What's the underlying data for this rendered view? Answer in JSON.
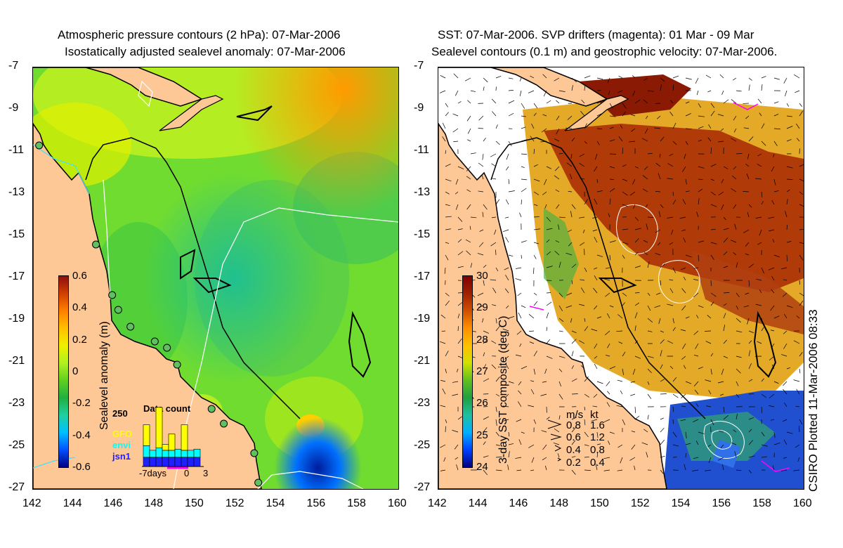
{
  "left_panel": {
    "title_line1": "Atmospheric pressure contours (2 hPa): 07-Mar-2006",
    "title_line2": "Isostatically adjusted sealevel anomaly: 07-Mar-2006",
    "colorbar": {
      "label": "Sealevel anomaly (m)",
      "ticks": [
        "0.6",
        "0.4",
        "0.2",
        "0",
        "-0.2",
        "-0.4",
        "-0.6"
      ],
      "range": [
        -0.6,
        0.6
      ],
      "colors": [
        "#00007f",
        "#0050ff",
        "#00c0ff",
        "#20d0a0",
        "#20b040",
        "#60d020",
        "#b0f020",
        "#f0f000",
        "#ffc000",
        "#ff8000",
        "#d04000",
        "#8b1010"
      ]
    },
    "histogram": {
      "title": "Data count",
      "ymax_label": "250",
      "series": [
        {
          "name": "GFO",
          "color": "#ffff00"
        },
        {
          "name": "envi",
          "color": "#00ffff"
        },
        {
          "name": "jsn1",
          "color": "#2020ff"
        }
      ],
      "x_labels": [
        "-7days",
        "0",
        "3"
      ],
      "bars": [
        {
          "jsn1": 40,
          "envi": 50,
          "gfo": 90
        },
        {
          "jsn1": 40,
          "envi": 30,
          "gfo": 0
        },
        {
          "jsn1": 40,
          "envi": 40,
          "gfo": 175
        },
        {
          "jsn1": 40,
          "envi": 30,
          "gfo": 25
        },
        {
          "jsn1": 40,
          "envi": 30,
          "gfo": 70
        },
        {
          "jsn1": 40,
          "envi": 35,
          "gfo": 0
        },
        {
          "jsn1": 40,
          "envi": 30,
          "gfo": 110
        },
        {
          "jsn1": 40,
          "envi": 30,
          "gfo": 0
        },
        {
          "jsn1": 40,
          "envi": 35,
          "gfo": 0
        }
      ]
    }
  },
  "right_panel": {
    "title_line1": "SST: 07-Mar-2006. SVP drifters (magenta): 01 Mar - 09 Mar",
    "title_line2": "Sealevel contours (0.1 m) and geostrophic velocity: 07-Mar-2006.",
    "colorbar": {
      "label": "3-day SST composite (deg C)",
      "ticks": [
        "30",
        "29",
        "28",
        "27",
        "26",
        "25",
        "24"
      ],
      "range": [
        24,
        30
      ],
      "colors": [
        "#00007f",
        "#0040ff",
        "#00b0ff",
        "#20c0a0",
        "#20a040",
        "#60c020",
        "#d0e000",
        "#ffc000",
        "#ff9000",
        "#d05000",
        "#a02000",
        "#7f0000"
      ]
    },
    "velocity_legend": {
      "header_ms": "m/s",
      "header_kt": "kt",
      "rows": [
        {
          "ms": "0.8",
          "kt": "1.6"
        },
        {
          "ms": "0.6",
          "kt": "1.2"
        },
        {
          "ms": "0.4",
          "kt": "0.8"
        },
        {
          "ms": "0.2",
          "kt": "0.4"
        }
      ]
    }
  },
  "axes": {
    "lon_ticks": [
      "142",
      "144",
      "146",
      "148",
      "150",
      "152",
      "154",
      "156",
      "158",
      "160"
    ],
    "lat_ticks": [
      "-7",
      "-9",
      "-11",
      "-13",
      "-15",
      "-17",
      "-19",
      "-21",
      "-23",
      "-25",
      "-27"
    ],
    "lon_range": [
      142,
      160
    ],
    "lat_range": [
      -27,
      -7
    ]
  },
  "tide_gauges": [
    {
      "lon": 142.3,
      "lat": -10.7
    },
    {
      "lon": 145.1,
      "lat": -15.4
    },
    {
      "lon": 145.9,
      "lat": -17.8
    },
    {
      "lon": 146.2,
      "lat": -18.5
    },
    {
      "lon": 146.8,
      "lat": -19.3
    },
    {
      "lon": 148.0,
      "lat": -20.0
    },
    {
      "lon": 148.6,
      "lat": -20.3
    },
    {
      "lon": 149.1,
      "lat": -21.1
    },
    {
      "lon": 150.8,
      "lat": -23.2
    },
    {
      "lon": 151.4,
      "lat": -23.9
    },
    {
      "lon": 152.9,
      "lat": -25.3
    },
    {
      "lon": 153.1,
      "lat": -26.7
    }
  ],
  "credit": "CSIRO Plotted 11-Mar-2006 08:33",
  "colors": {
    "land": "#fdc796",
    "coast": "#000000",
    "left_ocean": "#70dc30",
    "cloud": "#ffffff"
  }
}
